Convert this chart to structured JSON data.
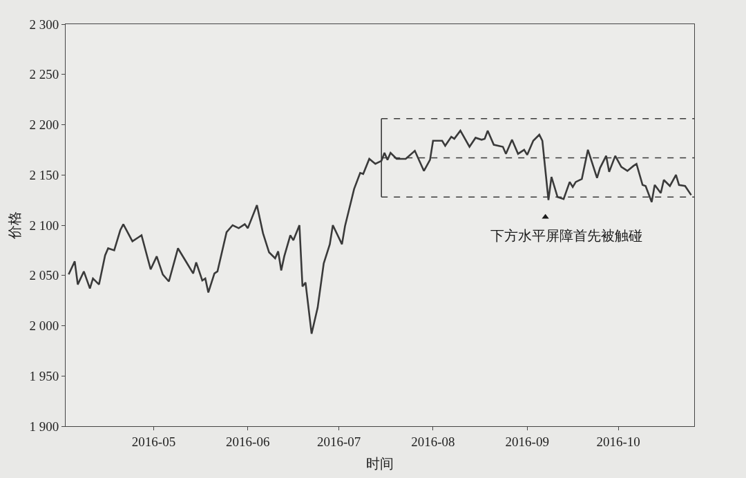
{
  "chart_data": {
    "type": "line",
    "xlabel": "时间",
    "ylabel": "价格",
    "x": [
      "2016-04-03",
      "2016-04-05",
      "2016-04-06",
      "2016-04-08",
      "2016-04-10",
      "2016-04-11",
      "2016-04-13",
      "2016-04-15",
      "2016-04-16",
      "2016-04-18",
      "2016-04-20",
      "2016-04-21",
      "2016-04-24",
      "2016-04-26",
      "2016-04-27",
      "2016-04-30",
      "2016-05-02",
      "2016-05-04",
      "2016-05-06",
      "2016-05-09",
      "2016-05-12",
      "2016-05-14",
      "2016-05-15",
      "2016-05-17",
      "2016-05-18",
      "2016-05-19",
      "2016-05-21",
      "2016-05-22",
      "2016-05-25",
      "2016-05-27",
      "2016-05-29",
      "2016-05-31",
      "2016-06-01",
      "2016-06-04",
      "2016-06-06",
      "2016-06-08",
      "2016-06-10",
      "2016-06-11",
      "2016-06-12",
      "2016-06-13",
      "2016-06-15",
      "2016-06-16",
      "2016-06-18",
      "2016-06-19",
      "2016-06-20",
      "2016-06-22",
      "2016-06-24",
      "2016-06-26",
      "2016-06-28",
      "2016-06-29",
      "2016-07-02",
      "2016-07-03",
      "2016-07-06",
      "2016-07-08",
      "2016-07-09",
      "2016-07-11",
      "2016-07-13",
      "2016-07-15",
      "2016-07-16",
      "2016-07-17",
      "2016-07-18",
      "2016-07-20",
      "2016-07-23",
      "2016-07-26",
      "2016-07-29",
      "2016-07-31",
      "2016-08-01",
      "2016-08-04",
      "2016-08-05",
      "2016-08-07",
      "2016-08-08",
      "2016-08-10",
      "2016-08-13",
      "2016-08-15",
      "2016-08-17",
      "2016-08-18",
      "2016-08-19",
      "2016-08-21",
      "2016-08-24",
      "2016-08-25",
      "2016-08-27",
      "2016-08-29",
      "2016-08-31",
      "2016-09-01",
      "2016-09-03",
      "2016-09-05",
      "2016-09-06",
      "2016-09-08",
      "2016-09-09",
      "2016-09-11",
      "2016-09-13",
      "2016-09-15",
      "2016-09-16",
      "2016-09-17",
      "2016-09-19",
      "2016-09-21",
      "2016-09-24",
      "2016-09-25",
      "2016-09-27",
      "2016-09-28",
      "2016-09-30",
      "2016-10-02",
      "2016-10-04",
      "2016-10-06",
      "2016-10-07",
      "2016-10-09",
      "2016-10-10",
      "2016-10-12",
      "2016-10-13",
      "2016-10-15",
      "2016-10-16",
      "2016-10-18",
      "2016-10-20",
      "2016-10-21",
      "2016-10-23",
      "2016-10-25"
    ],
    "series": [
      {
        "color": "#3a3a3a",
        "values": [
          2051,
          2064,
          2041,
          2054,
          2037,
          2047,
          2041,
          2070,
          2077,
          2075,
          2095,
          2101,
          2084,
          2088,
          2090,
          2056,
          2069,
          2051,
          2044,
          2077,
          2062,
          2052,
          2063,
          2045,
          2047,
          2033,
          2052,
          2054,
          2093,
          2100,
          2097,
          2101,
          2097,
          2120,
          2092,
          2073,
          2067,
          2074,
          2055,
          2069,
          2090,
          2085,
          2100,
          2039,
          2043,
          1992,
          2018,
          2062,
          2081,
          2100,
          2081,
          2099,
          2136,
          2152,
          2151,
          2166,
          2161,
          2164,
          2172,
          2165,
          2172,
          2166,
          2166,
          2174,
          2154,
          2165,
          2184,
          2184,
          2179,
          2188,
          2186,
          2194,
          2178,
          2187,
          2185,
          2186,
          2194,
          2180,
          2178,
          2171,
          2185,
          2171,
          2175,
          2170,
          2184,
          2190,
          2184,
          2125,
          2148,
          2128,
          2126,
          2143,
          2138,
          2143,
          2146,
          2175,
          2147,
          2157,
          2169,
          2153,
          2169,
          2158,
          2154,
          2159,
          2161,
          2140,
          2139,
          2123,
          2140,
          2132,
          2145,
          2139,
          2150,
          2140,
          2139,
          2130
        ]
      },
      {
        "type": "line",
        "line_style": "dashed",
        "color": "#3a3a3a",
        "x": [
          "2016-07-15",
          "2016-10-26"
        ],
        "values": [
          2206,
          2206
        ]
      },
      {
        "type": "line",
        "line_style": "dashed",
        "color": "#3a3a3a",
        "x": [
          "2016-07-15",
          "2016-10-26"
        ],
        "values": [
          2167,
          2167
        ]
      },
      {
        "type": "line",
        "line_style": "dashed",
        "color": "#3a3a3a",
        "x": [
          "2016-07-15",
          "2016-10-26"
        ],
        "values": [
          2128,
          2128
        ]
      },
      {
        "type": "line",
        "line_style": "solid",
        "color": "#3a3a3a",
        "x": [
          "2016-07-15",
          "2016-07-15"
        ],
        "values": [
          2128,
          2206
        ]
      },
      {
        "type": "scatter",
        "marker": "triangle",
        "color": "#1a1a1a",
        "x": [
          "2016-09-07"
        ],
        "values": [
          2108
        ]
      }
    ],
    "annotations": [
      {
        "text": "下方水平屏障首先被触碰",
        "x": "2016-09-07",
        "y": 2108
      }
    ],
    "xlim": [
      "2016-04-02",
      "2016-10-26"
    ],
    "xticks": [
      {
        "value": "2016-05-01",
        "label": "2016-05"
      },
      {
        "value": "2016-06-01",
        "label": "2016-06"
      },
      {
        "value": "2016-07-01",
        "label": "2016-07"
      },
      {
        "value": "2016-08-01",
        "label": "2016-08"
      },
      {
        "value": "2016-09-01",
        "label": "2016-09"
      },
      {
        "value": "2016-10-01",
        "label": "2016-10"
      }
    ],
    "ylim": [
      1900,
      2300
    ],
    "yticks": [
      {
        "value": 1900,
        "label": "1 900"
      },
      {
        "value": 1950,
        "label": "1 950"
      },
      {
        "value": 2000,
        "label": "2 000"
      },
      {
        "value": 2050,
        "label": "2 050"
      },
      {
        "value": 2100,
        "label": "2 100"
      },
      {
        "value": 2150,
        "label": "2 150"
      },
      {
        "value": 2200,
        "label": "2 200"
      },
      {
        "value": 2250,
        "label": "2 250"
      },
      {
        "value": 2300,
        "label": "2 300"
      }
    ],
    "grid": false,
    "line_style": "solid",
    "marker": "none"
  }
}
